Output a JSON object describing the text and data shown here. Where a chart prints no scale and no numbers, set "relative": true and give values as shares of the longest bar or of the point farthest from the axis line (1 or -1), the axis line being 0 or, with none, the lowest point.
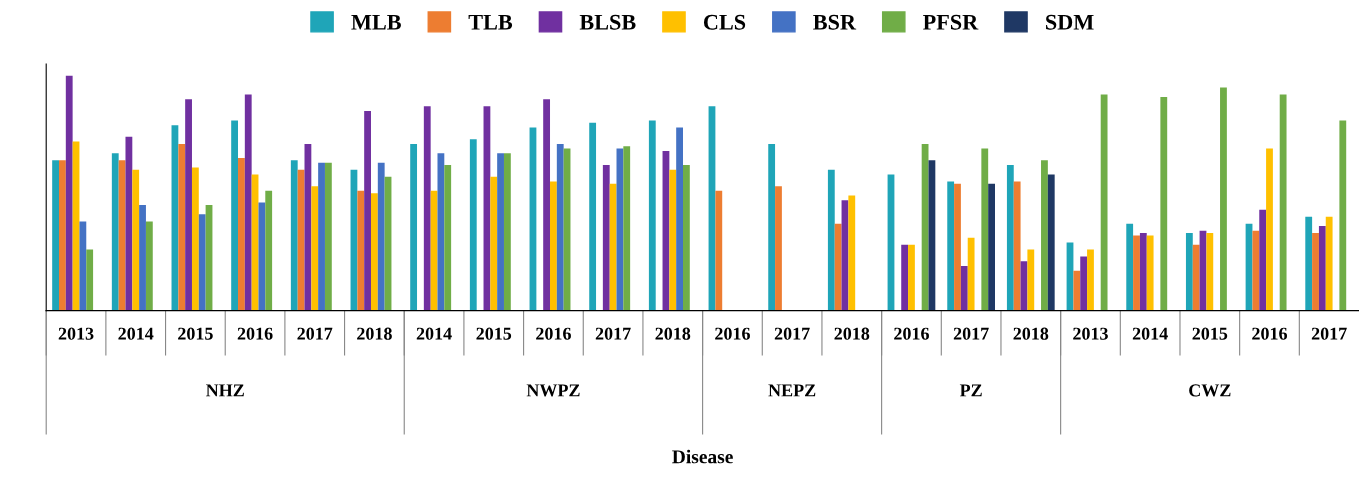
{
  "chart_data": {
    "type": "bar",
    "relative": true,
    "categories": [
      "2013",
      "2014",
      "2015",
      "2016",
      "2017",
      "2018",
      "2014",
      "2015",
      "2016",
      "2017",
      "2018",
      "2016",
      "2017",
      "2018",
      "2016",
      "2017",
      "2018",
      "2013",
      "2014",
      "2015",
      "2016",
      "2017"
    ],
    "annotations": [
      "NHZ",
      "NWPZ",
      "NEPZ",
      "PZ",
      "CWZ",
      "Disease"
    ],
    "series": [
      {
        "name": "MLB",
        "color": "#1fa5b8",
        "values": [
          0.64,
          0.67,
          0.79,
          0.81,
          0.64,
          0.6,
          0.71,
          0.73,
          0.78,
          0.8,
          0.81,
          0.87,
          0.71,
          0.6,
          0.58,
          0.55,
          0.62,
          0.29,
          0.37,
          0.33,
          0.37,
          0.4
        ]
      },
      {
        "name": "TLB",
        "color": "#ed7d31",
        "values": [
          0.64,
          0.64,
          0.71,
          0.65,
          0.6,
          0.51,
          null,
          null,
          null,
          null,
          null,
          0.51,
          0.53,
          0.37,
          null,
          0.54,
          0.55,
          0.17,
          0.32,
          0.28,
          0.34,
          0.33
        ]
      },
      {
        "name": "BLSB",
        "color": "#7030a0",
        "values": [
          1,
          0.74,
          0.9,
          0.92,
          0.71,
          0.85,
          0.87,
          0.87,
          0.9,
          0.62,
          0.68,
          null,
          null,
          0.47,
          0.28,
          0.19,
          0.21,
          0.23,
          0.33,
          0.34,
          0.43,
          0.36
        ]
      },
      {
        "name": "CLS",
        "color": "#ffc000",
        "values": [
          0.72,
          0.6,
          0.61,
          0.58,
          0.53,
          0.5,
          0.51,
          0.57,
          0.55,
          0.54,
          0.6,
          null,
          null,
          0.49,
          0.28,
          0.31,
          0.26,
          0.26,
          0.32,
          0.33,
          0.69,
          0.4
        ]
      },
      {
        "name": "BSR",
        "color": "#4472c4",
        "values": [
          0.38,
          0.45,
          0.41,
          0.46,
          0.63,
          0.63,
          0.67,
          0.67,
          0.71,
          0.69,
          0.78,
          null,
          null,
          null,
          null,
          null,
          null,
          null,
          null,
          null,
          null,
          null
        ]
      },
      {
        "name": "PFSR",
        "color": "#70ad47",
        "values": [
          0.26,
          0.38,
          0.45,
          0.51,
          0.63,
          0.57,
          0.62,
          0.67,
          0.69,
          0.7,
          0.62,
          null,
          null,
          null,
          0.71,
          0.69,
          0.64,
          0.92,
          0.91,
          0.95,
          0.92,
          0.81
        ]
      },
      {
        "name": "SDM",
        "color": "#1f3864",
        "values": [
          null,
          null,
          null,
          null,
          null,
          null,
          null,
          null,
          null,
          null,
          null,
          null,
          null,
          null,
          0.64,
          0.54,
          0.58,
          null,
          null,
          null,
          null,
          null
        ]
      }
    ],
    "legend": "top"
  }
}
